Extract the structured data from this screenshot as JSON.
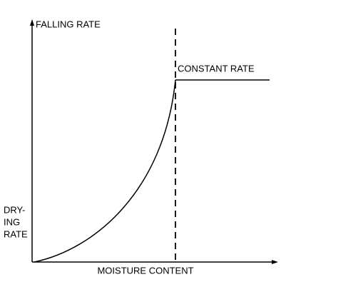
{
  "regions": {
    "falling": "FALLING RATE",
    "constant": "CONSTANT RATE"
  },
  "y_axis_label": [
    "DRY-",
    "ING",
    "RATE"
  ],
  "x_axis_label": "MOISTURE CONTENT"
}
